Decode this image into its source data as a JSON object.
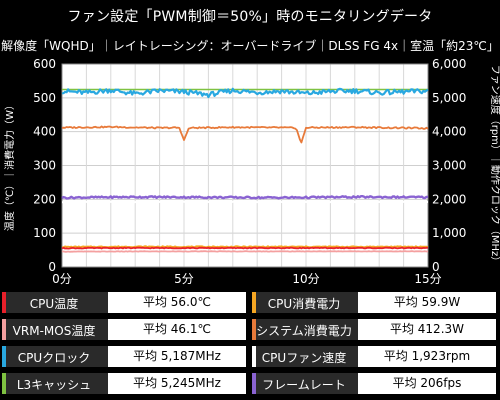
{
  "title": "ファン設定「PWM制御＝50%」時のモニタリングデータ",
  "subtitle": "解像度「WQHD」｜レイトレーシング：オーバードライブ｜DLSS FG 4x｜室温「約23℃」",
  "chart_data": {
    "type": "line",
    "xlabel": "",
    "ylabel_left": "温度（℃）｜消費電力（W）",
    "ylabel_right": "ファン速度（rpm）｜動作クロック（MHz）",
    "ylim_left": [
      0,
      600
    ],
    "ylim_right": [
      0,
      6000
    ],
    "xlim": [
      0,
      15
    ],
    "x_ticks": [
      "0分",
      "5分",
      "10分",
      "15分"
    ],
    "y_ticks_left": [
      "0",
      "100",
      "200",
      "300",
      "400",
      "500",
      "600"
    ],
    "y_ticks_right": [
      "0",
      "1,000",
      "2,000",
      "3,000",
      "4,000",
      "5,000",
      "6,000"
    ],
    "grid": true,
    "series": [
      {
        "name": "CPU温度",
        "axis": "left",
        "color": "#e8202a",
        "avg": 56.0,
        "x": [
          0,
          3,
          6,
          9,
          12,
          15
        ],
        "values": [
          55.5,
          56.2,
          56.0,
          56.1,
          56.0,
          56.2
        ]
      },
      {
        "name": "CPU消費電力",
        "axis": "left",
        "color": "#f5a623",
        "avg": 59.9,
        "x": [
          0,
          3,
          6,
          9,
          12,
          15
        ],
        "values": [
          59.5,
          60.2,
          59.8,
          60.0,
          59.9,
          60.1
        ]
      },
      {
        "name": "VRM-MOS温度",
        "axis": "left",
        "color": "#f4a0a0",
        "avg": 46.1,
        "x": [
          0,
          3,
          6,
          9,
          12,
          15
        ],
        "values": [
          45.5,
          46.0,
          46.2,
          46.1,
          46.3,
          46.2
        ]
      },
      {
        "name": "システム消費電力",
        "axis": "left",
        "color": "#e87a3a",
        "avg": 412.3,
        "x": [
          0,
          2,
          4,
          4.8,
          5,
          5.2,
          7,
          9,
          9.6,
          9.8,
          10,
          12,
          14,
          15
        ],
        "values": [
          412,
          414,
          411,
          412,
          375,
          411,
          413,
          412,
          411,
          365,
          412,
          413,
          411,
          410
        ]
      },
      {
        "name": "CPUクロック",
        "axis": "right",
        "color": "#29a8e0",
        "avg": 5187,
        "x": [
          0,
          1,
          2,
          3,
          4,
          5,
          6,
          7,
          8,
          9,
          10,
          11,
          12,
          13,
          14,
          15
        ],
        "values": [
          5200,
          5150,
          5230,
          5120,
          5210,
          5180,
          5090,
          5220,
          5160,
          5200,
          5130,
          5190,
          5210,
          5150,
          5180,
          5200
        ]
      },
      {
        "name": "CPUファン速度",
        "axis": "right",
        "color": "#ffffff",
        "avg": 1923,
        "x": [
          0,
          3,
          6,
          9,
          12,
          15
        ],
        "values": [
          1925,
          1920,
          1922,
          1926,
          1921,
          1924
        ]
      },
      {
        "name": "L3キャッシュ",
        "axis": "right",
        "color": "#7fc241",
        "avg": 5245,
        "x": [
          0,
          3,
          6,
          9,
          12,
          15
        ],
        "values": [
          5245,
          5245,
          5245,
          5245,
          5245,
          5245
        ]
      },
      {
        "name": "フレームレート",
        "axis": "left",
        "color": "#8a63d2",
        "avg": 206,
        "x": [
          0,
          3,
          6,
          9,
          12,
          15
        ],
        "values": [
          205,
          207,
          206,
          205,
          207,
          206
        ]
      }
    ]
  },
  "legend": [
    [
      {
        "name": "CPU温度",
        "color": "#e8202a",
        "value": "平均 56.0℃"
      },
      {
        "name": "CPU消費電力",
        "color": "#f5a623",
        "value": "平均 59.9W"
      }
    ],
    [
      {
        "name": "VRM-MOS温度",
        "color": "#f4a0a0",
        "value": "平均 46.1℃"
      },
      {
        "name": "システム消費電力",
        "color": "#e87a3a",
        "value": "平均 412.3W"
      }
    ],
    [
      {
        "name": "CPUクロック",
        "color": "#29a8e0",
        "value": "平均 5,187MHz"
      },
      {
        "name": "CPUファン速度",
        "color": "#ffffff",
        "value": "平均 1,923rpm"
      }
    ],
    [
      {
        "name": "L3キャッシュ",
        "color": "#7fc241",
        "value": "平均 5,245MHz"
      },
      {
        "name": "フレームレート",
        "color": "#8a63d2",
        "value": "平均 206fps"
      }
    ]
  ]
}
